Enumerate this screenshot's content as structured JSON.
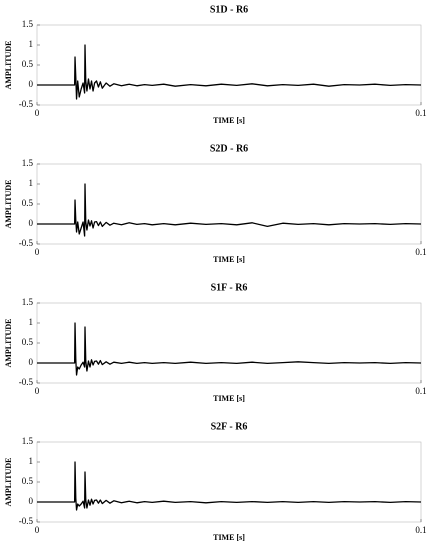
{
  "chart_data": [
    {
      "type": "line",
      "title": "S1D - R6",
      "xlabel": "TIME [s]",
      "ylabel": "AMPLITUDE",
      "color": "#000000",
      "xlim": [
        0,
        0.1
      ],
      "xticks": [
        0,
        0.1
      ],
      "ylim": [
        -0.5,
        1.5
      ],
      "yticks": [
        -0.5,
        0,
        0.5,
        1,
        1.5
      ],
      "x": [
        0,
        0.0098,
        0.0099,
        0.0101,
        0.0103,
        0.0106,
        0.011,
        0.0115,
        0.012,
        0.0124,
        0.0125,
        0.0127,
        0.013,
        0.0134,
        0.0138,
        0.0142,
        0.0146,
        0.015,
        0.0155,
        0.016,
        0.0165,
        0.017,
        0.018,
        0.019,
        0.02,
        0.022,
        0.024,
        0.026,
        0.028,
        0.03,
        0.033,
        0.036,
        0.04,
        0.044,
        0.048,
        0.052,
        0.056,
        0.06,
        0.064,
        0.068,
        0.072,
        0.076,
        0.08,
        0.084,
        0.088,
        0.092,
        0.096,
        0.1
      ],
      "values": [
        0,
        0,
        0.7,
        0.2,
        -0.35,
        0.1,
        -0.3,
        -0.1,
        0.05,
        -0.2,
        1.0,
        0.1,
        -0.15,
        0.15,
        -0.1,
        0.1,
        -0.15,
        0.05,
        0.1,
        -0.05,
        0.08,
        -0.08,
        0.05,
        -0.03,
        0.03,
        -0.02,
        0.02,
        -0.02,
        0.01,
        -0.01,
        0.02,
        -0.03,
        0.01,
        -0.02,
        0.02,
        -0.01,
        0.03,
        -0.02,
        0.01,
        -0.01,
        0.02,
        -0.03,
        0.01,
        0,
        0.02,
        -0.01,
        0.01,
        0
      ]
    },
    {
      "type": "line",
      "title": "S2D - R6",
      "xlabel": "TIME [s]",
      "ylabel": "AMPLITUDE",
      "color": "#000000",
      "xlim": [
        0,
        0.1
      ],
      "xticks": [
        0,
        0.1
      ],
      "ylim": [
        -0.5,
        1.5
      ],
      "yticks": [
        -0.5,
        0,
        0.5,
        1,
        1.5
      ],
      "x": [
        0,
        0.0098,
        0.0099,
        0.0101,
        0.0103,
        0.0106,
        0.011,
        0.0115,
        0.012,
        0.0124,
        0.0125,
        0.0127,
        0.013,
        0.0134,
        0.0138,
        0.0142,
        0.0146,
        0.015,
        0.0155,
        0.016,
        0.0165,
        0.017,
        0.018,
        0.019,
        0.02,
        0.022,
        0.024,
        0.026,
        0.028,
        0.03,
        0.033,
        0.036,
        0.04,
        0.044,
        0.048,
        0.052,
        0.056,
        0.06,
        0.064,
        0.068,
        0.072,
        0.076,
        0.08,
        0.084,
        0.088,
        0.092,
        0.096,
        0.1
      ],
      "values": [
        0,
        0,
        0.6,
        0.1,
        -0.2,
        0.05,
        -0.25,
        -0.1,
        0.05,
        -0.3,
        1.0,
        0.05,
        -0.15,
        0.1,
        -0.05,
        0.08,
        -0.1,
        0.05,
        0.06,
        -0.04,
        0.05,
        -0.06,
        0.04,
        -0.03,
        0.02,
        -0.02,
        0.03,
        -0.01,
        0.01,
        -0.02,
        0.01,
        -0.02,
        0.02,
        -0.01,
        0.01,
        -0.02,
        0.03,
        -0.06,
        0.02,
        -0.01,
        0.01,
        -0.02,
        0.01,
        0,
        0.01,
        -0.01,
        0.01,
        0
      ]
    },
    {
      "type": "line",
      "title": "S1F - R6",
      "xlabel": "TIME [s]",
      "ylabel": "AMPLITUDE",
      "color": "#000000",
      "xlim": [
        0,
        0.1
      ],
      "xticks": [
        0,
        0.1
      ],
      "ylim": [
        -0.5,
        1.5
      ],
      "yticks": [
        -0.5,
        0,
        0.5,
        1,
        1.5
      ],
      "x": [
        0,
        0.0098,
        0.0099,
        0.0101,
        0.0103,
        0.0106,
        0.011,
        0.0115,
        0.012,
        0.0124,
        0.0125,
        0.0127,
        0.013,
        0.0134,
        0.0138,
        0.0142,
        0.0146,
        0.015,
        0.0155,
        0.016,
        0.0165,
        0.017,
        0.018,
        0.019,
        0.02,
        0.022,
        0.024,
        0.026,
        0.028,
        0.03,
        0.033,
        0.036,
        0.04,
        0.044,
        0.048,
        0.052,
        0.056,
        0.06,
        0.064,
        0.068,
        0.072,
        0.076,
        0.08,
        0.084,
        0.088,
        0.092,
        0.096,
        0.1
      ],
      "values": [
        0,
        0,
        1.0,
        0.1,
        -0.3,
        -0.1,
        -0.15,
        -0.05,
        0.02,
        -0.1,
        0.9,
        0.05,
        -0.2,
        0.05,
        -0.1,
        0.08,
        -0.05,
        0.04,
        0.05,
        -0.03,
        0.06,
        -0.04,
        0.03,
        -0.03,
        0.02,
        -0.01,
        0.02,
        -0.01,
        0.01,
        -0.01,
        0.01,
        -0.01,
        0.02,
        -0.01,
        0.01,
        -0.01,
        0.02,
        -0.01,
        0.01,
        0.03,
        0.01,
        -0.01,
        0.01,
        0,
        0.01,
        -0.01,
        0.01,
        0
      ]
    },
    {
      "type": "line",
      "title": "S2F - R6",
      "xlabel": "TIME [s]",
      "ylabel": "AMPLITUDE",
      "color": "#000000",
      "xlim": [
        0,
        0.1
      ],
      "xticks": [
        0,
        0.1
      ],
      "ylim": [
        -0.5,
        1.5
      ],
      "yticks": [
        -0.5,
        0,
        0.5,
        1,
        1.5
      ],
      "x": [
        0,
        0.0098,
        0.0099,
        0.0101,
        0.0103,
        0.0106,
        0.011,
        0.0115,
        0.012,
        0.0124,
        0.0125,
        0.0127,
        0.013,
        0.0134,
        0.0138,
        0.0142,
        0.0146,
        0.015,
        0.0155,
        0.016,
        0.0165,
        0.017,
        0.018,
        0.019,
        0.02,
        0.022,
        0.024,
        0.026,
        0.028,
        0.03,
        0.033,
        0.036,
        0.04,
        0.044,
        0.048,
        0.052,
        0.056,
        0.06,
        0.064,
        0.068,
        0.072,
        0.076,
        0.08,
        0.084,
        0.088,
        0.092,
        0.096,
        0.1
      ],
      "values": [
        0,
        0,
        1.0,
        0.1,
        -0.2,
        -0.05,
        -0.1,
        -0.05,
        0.02,
        -0.15,
        0.75,
        0.05,
        -0.15,
        0.05,
        -0.08,
        0.07,
        -0.05,
        0.04,
        0.05,
        -0.03,
        0.05,
        -0.04,
        0.04,
        -0.03,
        0.03,
        -0.02,
        0.02,
        -0.02,
        0.01,
        -0.01,
        0.02,
        -0.01,
        0.01,
        -0.02,
        0.01,
        -0.01,
        0.01,
        -0.01,
        0.01,
        -0.01,
        0.01,
        -0.01,
        0.01,
        0,
        0.01,
        -0.01,
        0.01,
        0
      ]
    }
  ]
}
